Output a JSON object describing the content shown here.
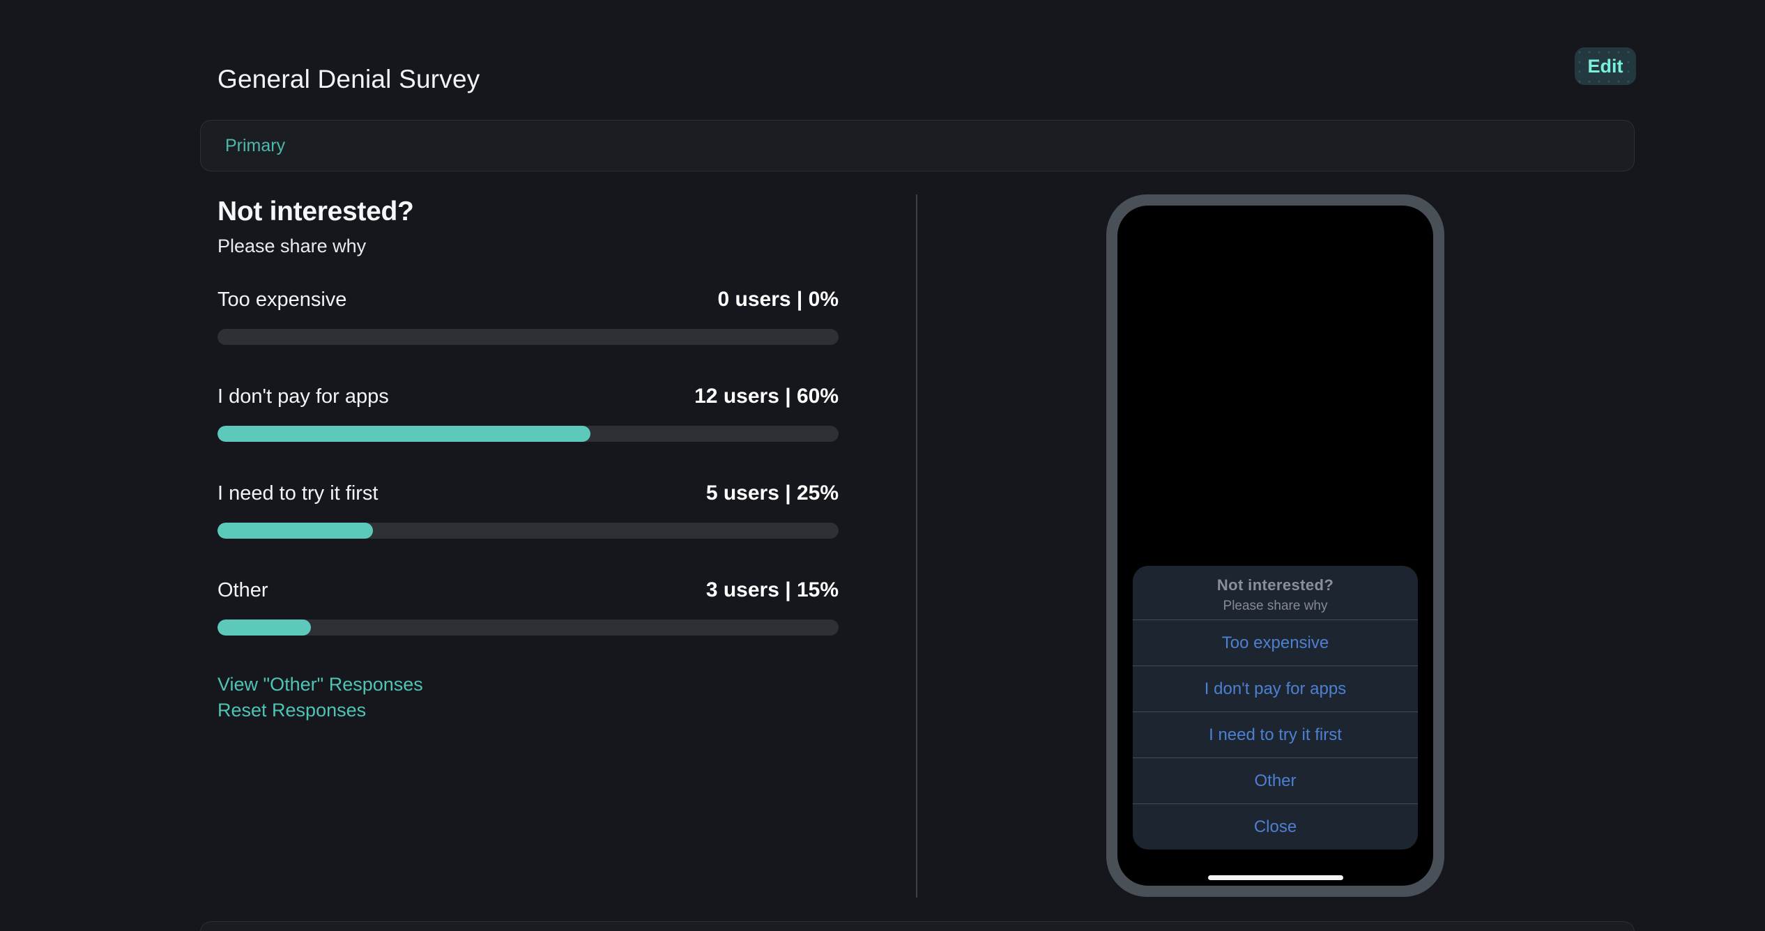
{
  "page": {
    "title": "General Denial Survey"
  },
  "header": {
    "edit_button": "Edit"
  },
  "primary_tab": {
    "label": "Primary"
  },
  "survey": {
    "question": "Not interested?",
    "subtitle": "Please share why",
    "options": [
      {
        "label": "Too expensive",
        "users": 0,
        "percent": 0,
        "stat": "0 users | 0%"
      },
      {
        "label": "I don't pay for apps",
        "users": 12,
        "percent": 60,
        "stat": "12 users | 60%"
      },
      {
        "label": "I need to try it first",
        "users": 5,
        "percent": 25,
        "stat": "5 users | 25%"
      },
      {
        "label": "Other",
        "users": 3,
        "percent": 15,
        "stat": "3 users | 15%"
      }
    ],
    "links": {
      "view_other": "View \"Other\" Responses",
      "reset": "Reset Responses"
    }
  },
  "phone_preview": {
    "dialog": {
      "title": "Not interested?",
      "subtitle": "Please share why",
      "options": [
        "Too expensive",
        "I don't pay for apps",
        "I need to try it first",
        "Other"
      ],
      "close": "Close"
    }
  },
  "colors": {
    "accent_fill_teal": "#5cc9ba",
    "link_teal": "#4fc4b5",
    "edit_text_teal": "#79f0de",
    "dialog_blue": "#4d80d1",
    "page_bg": "#15171c"
  }
}
